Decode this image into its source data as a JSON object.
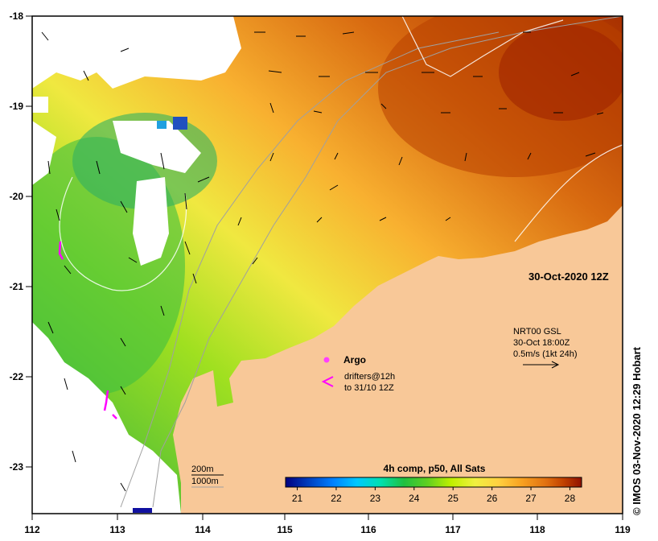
{
  "title_date": "30-Oct-2020 12Z",
  "credit": "IMOS 03-Nov-2020 12:29 Hobart",
  "credit_symbol": "©",
  "x_ticks": [
    "112",
    "113",
    "114",
    "115",
    "116",
    "117",
    "118",
    "119"
  ],
  "y_ticks": [
    "-18",
    "-19",
    "-20",
    "-21",
    "-22",
    "-23"
  ],
  "legend": {
    "argo_label": "Argo",
    "drifters_line1": "drifters@12h",
    "drifters_line2": "to 31/10 12Z",
    "current_line1": "NRT00 GSL",
    "current_line2": "30-Oct 18:00Z",
    "current_line3": "0.5m/s (1kt 24h)",
    "depth_200": "200m",
    "depth_1000": "1000m"
  },
  "colorbar": {
    "title": "4h comp, p50, All Sats",
    "ticks": [
      "21",
      "22",
      "23",
      "24",
      "25",
      "26",
      "27",
      "28"
    ],
    "range": [
      20.7,
      28.3
    ],
    "colors": [
      "#000080",
      "#0040c0",
      "#0080ff",
      "#00c8ff",
      "#00e0b0",
      "#20c040",
      "#60d020",
      "#c0f000",
      "#f0f040",
      "#ffd040",
      "#f8a020",
      "#e07010",
      "#c04000",
      "#901000"
    ]
  },
  "colors": {
    "land": "#f8c898",
    "argo": "#ff40ff",
    "drifter": "#ff00ff",
    "contour": "#ffffff",
    "isobath": "#a0a0a0"
  }
}
